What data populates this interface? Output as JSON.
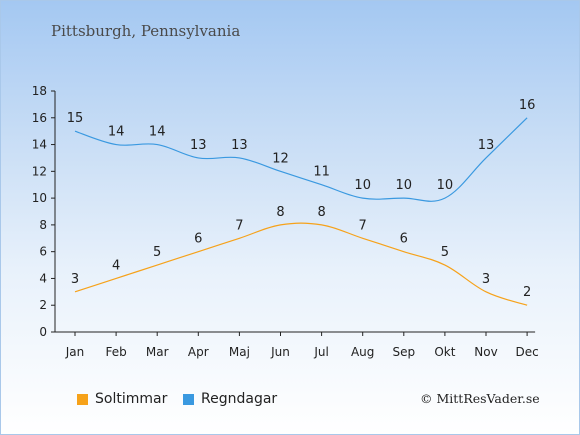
{
  "title": "Pittsburgh, Pennsylvania",
  "credit": "© MittResVader.se",
  "chart_data": {
    "type": "line",
    "categories": [
      "Jan",
      "Feb",
      "Mar",
      "Apr",
      "Maj",
      "Jun",
      "Jul",
      "Aug",
      "Sep",
      "Okt",
      "Nov",
      "Dec"
    ],
    "series": [
      {
        "name": "Soltimmar",
        "color": "#f6a21a",
        "values": [
          3,
          4,
          5,
          6,
          7,
          8,
          8,
          7,
          6,
          5,
          3,
          2
        ]
      },
      {
        "name": "Regndagar",
        "color": "#3a99e0",
        "values": [
          15,
          14,
          14,
          13,
          13,
          12,
          11,
          10,
          10,
          10,
          13,
          16
        ]
      }
    ],
    "ylim": [
      0,
      18
    ],
    "yticks": [
      0,
      2,
      4,
      6,
      8,
      10,
      12,
      14,
      16,
      18
    ],
    "grid": false,
    "legend": "bottom-left",
    "xlabel": "",
    "ylabel": ""
  }
}
